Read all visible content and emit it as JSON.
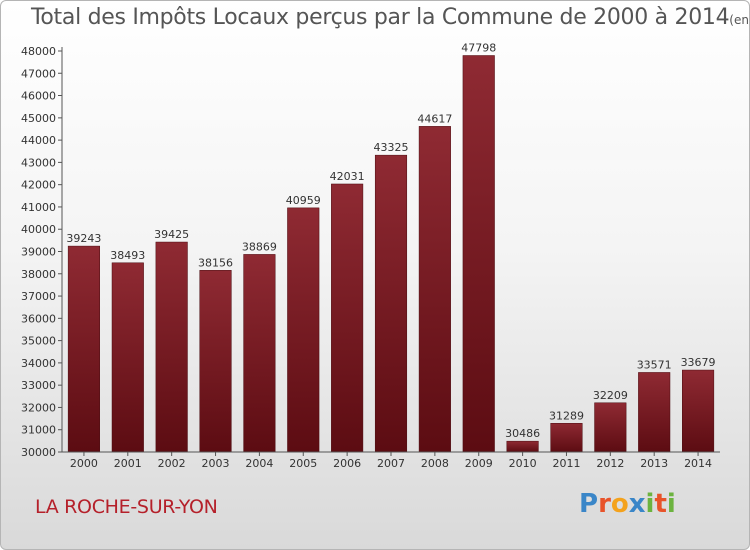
{
  "chart_data": {
    "type": "bar",
    "title": "Total des Impôts Locaux perçus par la Commune de 2000 à 2014",
    "unit_note": "(en milliers d'€)",
    "categories": [
      "2000",
      "2001",
      "2002",
      "2003",
      "2004",
      "2005",
      "2006",
      "2007",
      "2008",
      "2009",
      "2010",
      "2011",
      "2012",
      "2013",
      "2014"
    ],
    "values": [
      39243,
      38493,
      39425,
      38156,
      38869,
      40959,
      42031,
      43325,
      44617,
      47798,
      30486,
      31289,
      32209,
      33571,
      33679
    ],
    "ylim": [
      30000,
      48000
    ],
    "yticks": [
      30000,
      31000,
      32000,
      33000,
      34000,
      35000,
      36000,
      37000,
      38000,
      39000,
      40000,
      41000,
      42000,
      43000,
      44000,
      45000,
      46000,
      47000,
      48000
    ],
    "grid": false,
    "xlabel": "",
    "ylabel": "",
    "bar_color": "#7a1a22"
  },
  "footer": {
    "city": "LA ROCHE-SUR-YON",
    "logo_text": "Proxiti",
    "logo_colors": [
      "#3a86c8",
      "#e8532a",
      "#f4a21c",
      "#3a86c8",
      "#6cb33f",
      "#e8532a",
      "#6cb33f"
    ]
  }
}
